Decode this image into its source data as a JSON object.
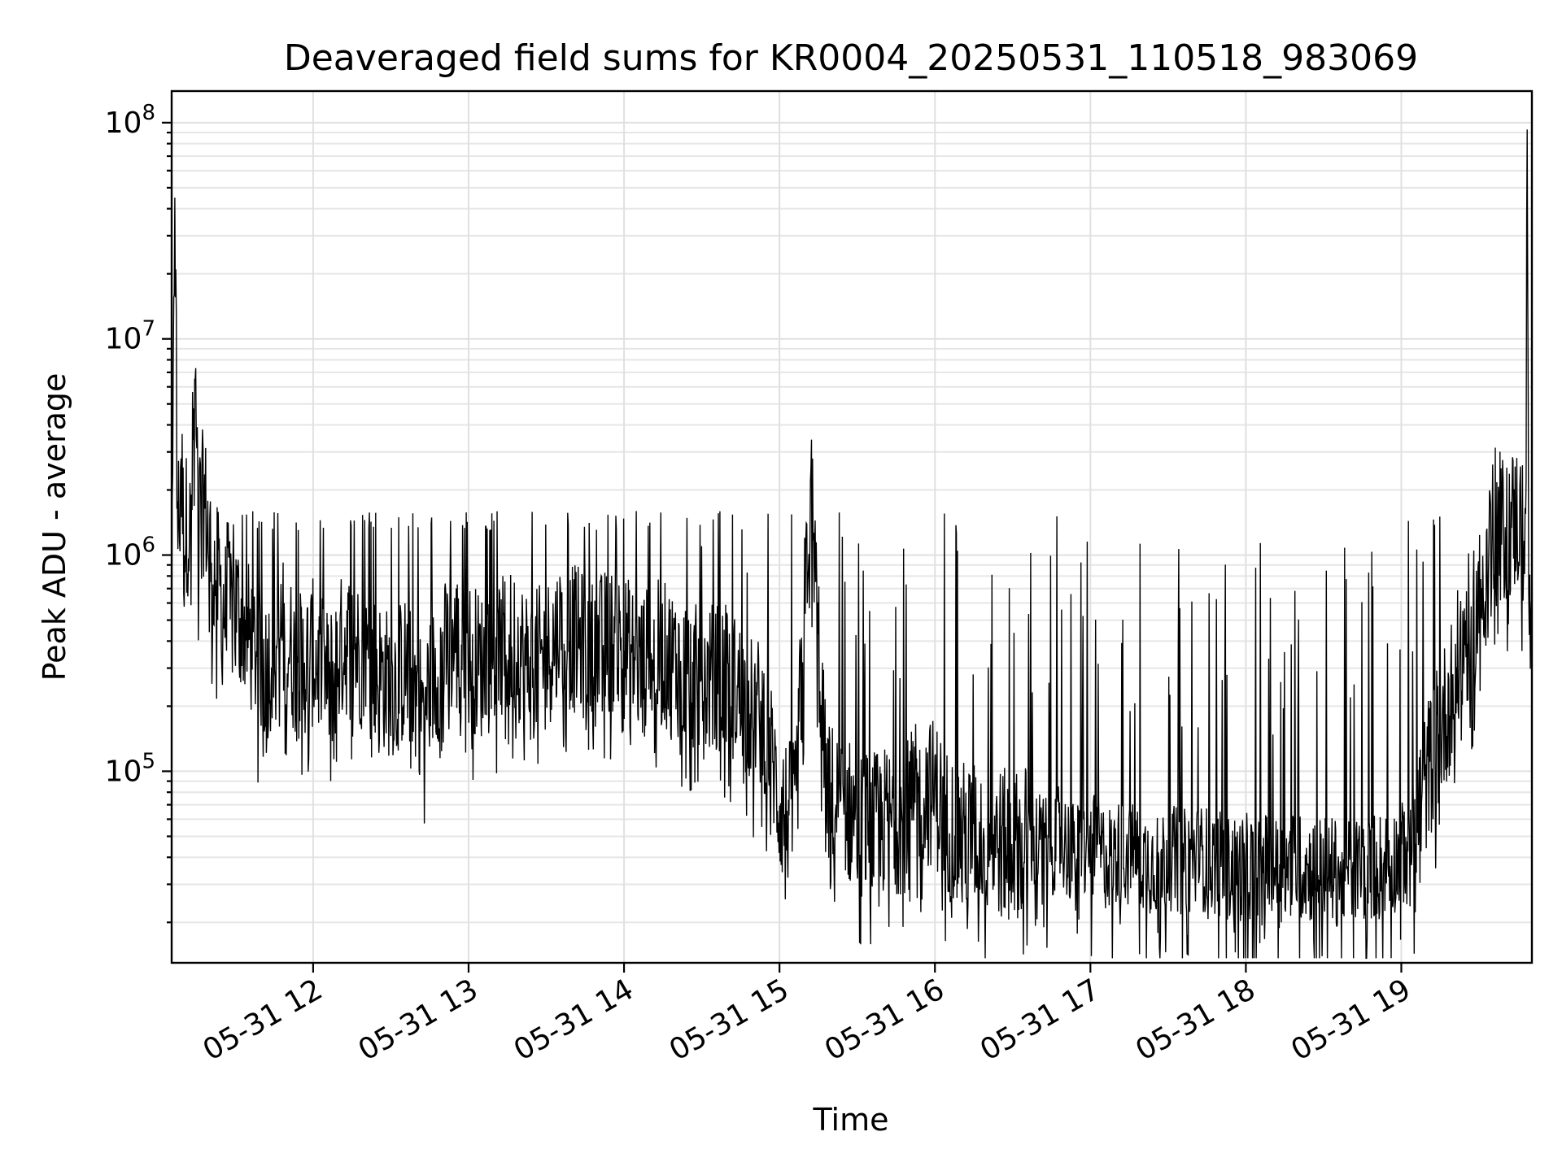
{
  "chart_data": {
    "type": "line",
    "title": "Deaveraged field sums for KR0004_20250531_110518_983069",
    "xlabel": "Time",
    "ylabel": "Peak ADU - average",
    "yscale": "log",
    "grid": true,
    "x_tick_labels": [
      "05-31 12",
      "05-31 13",
      "05-31 14",
      "05-31 15",
      "05-31 16",
      "05-31 17",
      "05-31 18",
      "05-31 19"
    ],
    "xlim_hours": [
      11.09,
      19.84
    ],
    "x_ticks_hours": [
      12,
      13,
      14,
      15,
      16,
      17,
      18,
      19
    ],
    "ylim": [
      13000,
      140000000
    ],
    "y_ticks": [
      {
        "value": 100000,
        "base": "10",
        "exp": "5"
      },
      {
        "value": 1000000,
        "base": "10",
        "exp": "6"
      },
      {
        "value": 10000000,
        "base": "10",
        "exp": "7"
      },
      {
        "value": 100000000,
        "base": "10",
        "exp": "8"
      }
    ],
    "series": [
      {
        "color": "#000000",
        "x": [
          11.09,
          11.11,
          11.13,
          11.15,
          11.17,
          11.19,
          11.21,
          11.24,
          11.26,
          11.3,
          11.35,
          11.4,
          11.45,
          11.5,
          11.6,
          11.7,
          11.8,
          11.9,
          12.0,
          12.1,
          12.2,
          12.3,
          12.4,
          12.5,
          12.6,
          12.7,
          12.8,
          12.9,
          13.0,
          13.1,
          13.2,
          13.3,
          13.4,
          13.5,
          13.6,
          13.7,
          13.8,
          13.9,
          14.0,
          14.1,
          14.2,
          14.3,
          14.4,
          14.5,
          14.6,
          14.7,
          14.8,
          14.9,
          15.0,
          15.1,
          15.2,
          15.3,
          15.4,
          15.5,
          15.6,
          15.7,
          15.8,
          15.9,
          16.0,
          16.1,
          16.2,
          16.3,
          16.4,
          16.5,
          16.6,
          16.7,
          16.8,
          16.9,
          17.0,
          17.1,
          17.2,
          17.3,
          17.4,
          17.5,
          17.6,
          17.7,
          17.8,
          17.9,
          18.0,
          18.1,
          18.2,
          18.3,
          18.4,
          18.5,
          18.6,
          18.7,
          18.8,
          18.9,
          19.0,
          19.1,
          19.2,
          19.3,
          19.4,
          19.5,
          19.55,
          19.6,
          19.65,
          19.7,
          19.75,
          19.8,
          19.81,
          19.82,
          19.84
        ],
        "values": [
          350000,
          45000000,
          1300000,
          2800000,
          1100000,
          1500000,
          1200000,
          6500000,
          1500000,
          1800000,
          900000,
          700000,
          500000,
          600000,
          400000,
          300000,
          450000,
          300000,
          350000,
          250000,
          400000,
          350000,
          300000,
          250000,
          300000,
          200000,
          300000,
          400000,
          350000,
          300000,
          350000,
          400000,
          300000,
          350000,
          450000,
          400000,
          350000,
          400000,
          380000,
          300000,
          350000,
          330000,
          300000,
          250000,
          280000,
          250000,
          200000,
          180000,
          70000,
          60000,
          2200000,
          80000,
          70000,
          60000,
          55000,
          60000,
          60000,
          80000,
          80000,
          55000,
          50000,
          50000,
          48000,
          45000,
          50000,
          45000,
          50000,
          40000,
          45000,
          40000,
          42000,
          40000,
          38000,
          40000,
          38000,
          40000,
          38000,
          35000,
          36000,
          38000,
          35000,
          37000,
          35000,
          36000,
          34000,
          35000,
          36000,
          38000,
          40000,
          60000,
          120000,
          200000,
          400000,
          600000,
          1000000,
          1500000,
          1300000,
          1400000,
          1500000,
          1200000,
          93000000,
          600000,
          350000
        ]
      }
    ]
  }
}
